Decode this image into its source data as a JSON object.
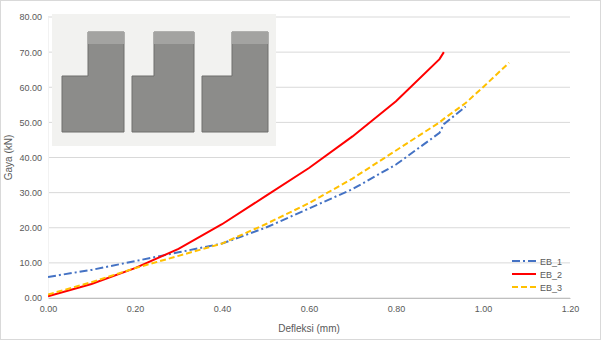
{
  "chart_data": {
    "type": "line",
    "x_label": "Defleksi (mm)",
    "y_label": "Gaya (kN)",
    "x": [
      0,
      0.1,
      0.2,
      0.3,
      0.4,
      0.5,
      0.6,
      0.7,
      0.8,
      0.9,
      0.91,
      0.96,
      1.0,
      1.06
    ],
    "series": [
      {
        "name": "EB_1",
        "color": "#4472c4",
        "line_style": "dashdot",
        "values": [
          6,
          8,
          10.5,
          13,
          15.5,
          20,
          25.5,
          31,
          38,
          47,
          49.5,
          54.5,
          null,
          null
        ]
      },
      {
        "name": "EB_2",
        "color": "#ff0000",
        "line_style": "solid",
        "values": [
          0.5,
          4,
          8.5,
          14,
          21,
          29,
          37,
          46,
          56,
          68,
          70,
          null,
          null,
          null
        ]
      },
      {
        "name": "EB_3",
        "color": "#ffc000",
        "line_style": "dashed",
        "values": [
          1,
          4.5,
          8.5,
          12,
          15.5,
          21,
          27,
          34,
          42,
          50,
          51,
          55.5,
          60,
          67
        ]
      }
    ],
    "xlim": [
      0,
      1.2
    ],
    "ylim": [
      0,
      80
    ],
    "xticks": [
      {
        "value": 0,
        "label": "0.00"
      },
      {
        "value": 0.2,
        "label": "0.20"
      },
      {
        "value": 0.4,
        "label": "0.40"
      },
      {
        "value": 0.6,
        "label": "0.60"
      },
      {
        "value": 0.8,
        "label": "0.80"
      },
      {
        "value": 1.0,
        "label": "1.00"
      },
      {
        "value": 1.2,
        "label": "1.20"
      }
    ],
    "yticks": [
      {
        "value": 0,
        "label": "0.00"
      },
      {
        "value": 10,
        "label": "10.00"
      },
      {
        "value": 20,
        "label": "20.00"
      },
      {
        "value": 30,
        "label": "30.00"
      },
      {
        "value": 40,
        "label": "40.00"
      },
      {
        "value": 50,
        "label": "50.00"
      },
      {
        "value": 60,
        "label": "60.00"
      },
      {
        "value": 70,
        "label": "70.00"
      },
      {
        "value": 80,
        "label": "80.00"
      }
    ],
    "grid": true,
    "legend": "lower right"
  }
}
